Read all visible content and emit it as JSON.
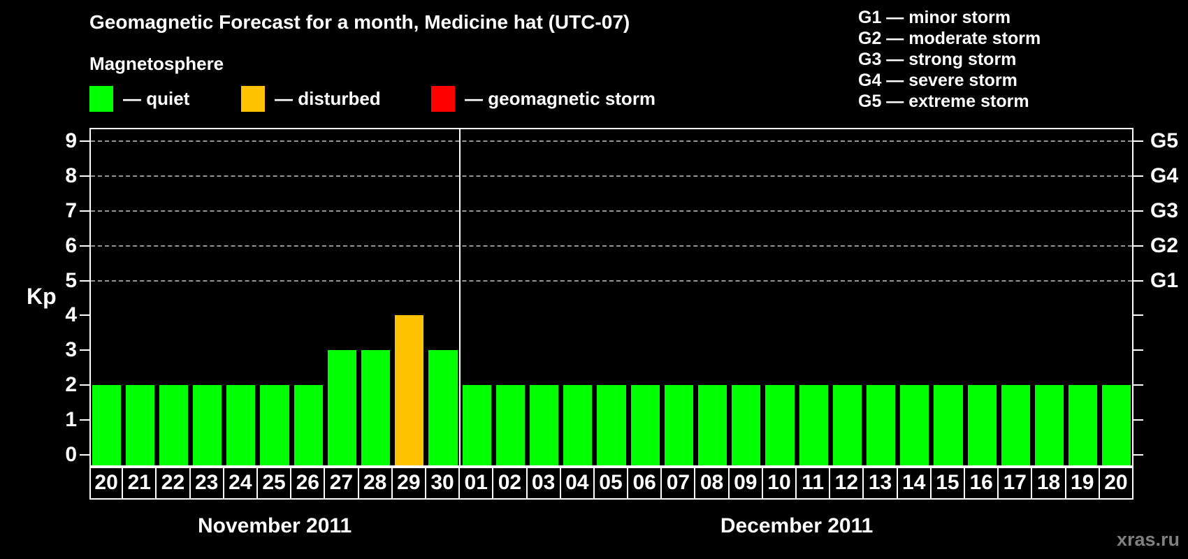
{
  "title": "Geomagnetic Forecast for a month, Medicine hat (UTC-07)",
  "magnetosphere_legend": {
    "heading": "Magnetosphere",
    "items": [
      {
        "label": "— quiet",
        "color": "#00ff00"
      },
      {
        "label": "— disturbed",
        "color": "#ffc200"
      },
      {
        "label": "— geomagnetic storm",
        "color": "#ff0000"
      }
    ]
  },
  "storm_scale_legend": {
    "items": [
      "G1 — minor storm",
      "G2 — moderate storm",
      "G3 — strong storm",
      "G4 — severe storm",
      "G5 — extreme storm"
    ]
  },
  "watermark": "xras.ru",
  "chart_data": {
    "type": "bar",
    "ylabel": "Kp",
    "ylim": [
      0,
      9
    ],
    "y_ticks": [
      0,
      1,
      2,
      3,
      4,
      5,
      6,
      7,
      8,
      9
    ],
    "gridlines_at": [
      5,
      6,
      7,
      8,
      9
    ],
    "grid": true,
    "right_axis_labels": [
      {
        "kp": 5,
        "label": "G1"
      },
      {
        "kp": 6,
        "label": "G2"
      },
      {
        "kp": 7,
        "label": "G3"
      },
      {
        "kp": 8,
        "label": "G4"
      },
      {
        "kp": 9,
        "label": "G5"
      }
    ],
    "status_colors": {
      "quiet": "#00ff00",
      "disturbed": "#ffc200",
      "storm": "#ff0000"
    },
    "months": [
      {
        "label": "November 2011",
        "days": 11
      },
      {
        "label": "December 2011",
        "days": 20
      }
    ],
    "series": [
      {
        "day": "20",
        "kp": 2,
        "status": "quiet"
      },
      {
        "day": "21",
        "kp": 2,
        "status": "quiet"
      },
      {
        "day": "22",
        "kp": 2,
        "status": "quiet"
      },
      {
        "day": "23",
        "kp": 2,
        "status": "quiet"
      },
      {
        "day": "24",
        "kp": 2,
        "status": "quiet"
      },
      {
        "day": "25",
        "kp": 2,
        "status": "quiet"
      },
      {
        "day": "26",
        "kp": 2,
        "status": "quiet"
      },
      {
        "day": "27",
        "kp": 3,
        "status": "quiet"
      },
      {
        "day": "28",
        "kp": 3,
        "status": "quiet"
      },
      {
        "day": "29",
        "kp": 4,
        "status": "disturbed"
      },
      {
        "day": "30",
        "kp": 3,
        "status": "quiet"
      },
      {
        "day": "01",
        "kp": 2,
        "status": "quiet"
      },
      {
        "day": "02",
        "kp": 2,
        "status": "quiet"
      },
      {
        "day": "03",
        "kp": 2,
        "status": "quiet"
      },
      {
        "day": "04",
        "kp": 2,
        "status": "quiet"
      },
      {
        "day": "05",
        "kp": 2,
        "status": "quiet"
      },
      {
        "day": "06",
        "kp": 2,
        "status": "quiet"
      },
      {
        "day": "07",
        "kp": 2,
        "status": "quiet"
      },
      {
        "day": "08",
        "kp": 2,
        "status": "quiet"
      },
      {
        "day": "09",
        "kp": 2,
        "status": "quiet"
      },
      {
        "day": "10",
        "kp": 2,
        "status": "quiet"
      },
      {
        "day": "11",
        "kp": 2,
        "status": "quiet"
      },
      {
        "day": "12",
        "kp": 2,
        "status": "quiet"
      },
      {
        "day": "13",
        "kp": 2,
        "status": "quiet"
      },
      {
        "day": "14",
        "kp": 2,
        "status": "quiet"
      },
      {
        "day": "15",
        "kp": 2,
        "status": "quiet"
      },
      {
        "day": "16",
        "kp": 2,
        "status": "quiet"
      },
      {
        "day": "17",
        "kp": 2,
        "status": "quiet"
      },
      {
        "day": "18",
        "kp": 2,
        "status": "quiet"
      },
      {
        "day": "19",
        "kp": 2,
        "status": "quiet"
      },
      {
        "day": "20",
        "kp": 2,
        "status": "quiet"
      }
    ]
  }
}
